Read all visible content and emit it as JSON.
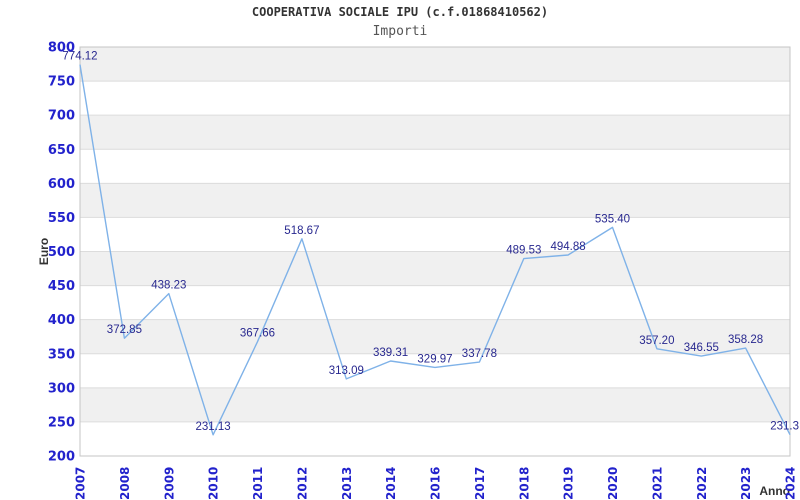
{
  "header": {
    "title": "COOPERATIVA SOCIALE IPU (c.f.01868410562)",
    "subtitle": "Importi"
  },
  "chart_data": {
    "type": "line",
    "title": "COOPERATIVA SOCIALE IPU (c.f.01868410562)",
    "subtitle": "Importi",
    "xlabel": "Anno",
    "ylabel": "Euro",
    "categories": [
      "2007",
      "2008",
      "2009",
      "2010",
      "2011",
      "2012",
      "2013",
      "2014",
      "2016",
      "2017",
      "2018",
      "2019",
      "2020",
      "2021",
      "2022",
      "2023",
      "2024"
    ],
    "values": [
      774.12,
      372.85,
      438.23,
      231.13,
      367.66,
      518.67,
      313.09,
      339.31,
      329.97,
      337.78,
      489.53,
      494.88,
      535.4,
      357.2,
      346.55,
      358.28,
      231.3
    ],
    "point_labels": [
      "774.12",
      "372.85",
      "438.23",
      "231.13",
      "367.66",
      "518.67",
      "313.09",
      "339.31",
      "329.97",
      "337.78",
      "489.53",
      "494.88",
      "535.40",
      "357.20",
      "346.55",
      "358.28",
      "231.3"
    ],
    "ylim": [
      200,
      800
    ],
    "ytick_step": 50,
    "ytick_labels": [
      "200",
      "250",
      "300",
      "350",
      "400",
      "450",
      "500",
      "550",
      "600",
      "650",
      "700",
      "750",
      "800"
    ],
    "grid": "horizontal-gridlines-with-alternating-bands",
    "legend": "none",
    "colors": {
      "line": "#7fb2e8",
      "band": "#f0f0f0",
      "gridline": "#dcdcdc",
      "plot_border": "#c5c5c5",
      "tick_label": "#2222cc",
      "point_label": "#28288f",
      "axis_title": "#333333",
      "background": "#ffffff"
    }
  }
}
